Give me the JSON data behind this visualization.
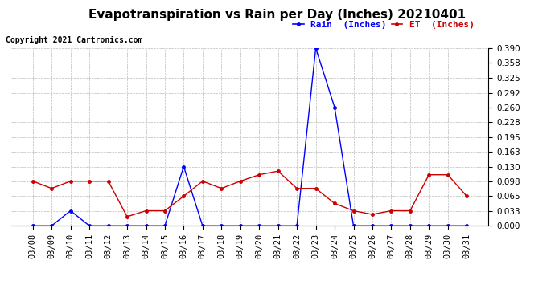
{
  "title": "Evapotranspiration vs Rain per Day (Inches) 20210401",
  "copyright": "Copyright 2021 Cartronics.com",
  "legend_rain": "Rain  (Inches)",
  "legend_et": "ET  (Inches)",
  "x_labels": [
    "03/08",
    "03/09",
    "03/10",
    "03/11",
    "03/12",
    "03/13",
    "03/14",
    "03/15",
    "03/16",
    "03/17",
    "03/18",
    "03/19",
    "03/20",
    "03/21",
    "03/22",
    "03/23",
    "03/24",
    "03/25",
    "03/26",
    "03/27",
    "03/28",
    "03/29",
    "03/30",
    "03/31"
  ],
  "rain_data": [
    0.0,
    0.0,
    0.033,
    0.0,
    0.0,
    0.0,
    0.0,
    0.0,
    0.13,
    0.0,
    0.0,
    0.0,
    0.0,
    0.0,
    0.0,
    0.39,
    0.26,
    0.0,
    0.0,
    0.0,
    0.0,
    0.0,
    0.0,
    0.0
  ],
  "et_data": [
    0.098,
    0.082,
    0.098,
    0.098,
    0.098,
    0.02,
    0.033,
    0.033,
    0.065,
    0.098,
    0.082,
    0.098,
    0.112,
    0.12,
    0.082,
    0.082,
    0.049,
    0.033,
    0.025,
    0.033,
    0.033,
    0.112,
    0.112,
    0.065
  ],
  "rain_color": "#0000ff",
  "et_color": "#cc0000",
  "ylim": [
    0.0,
    0.39
  ],
  "yticks": [
    0.0,
    0.033,
    0.065,
    0.098,
    0.13,
    0.163,
    0.195,
    0.228,
    0.26,
    0.292,
    0.325,
    0.358,
    0.39
  ],
  "bg_color": "#ffffff",
  "grid_color": "#bbbbbb",
  "title_fontsize": 11,
  "copyright_fontsize": 7,
  "legend_fontsize": 8,
  "tick_fontsize": 7.5
}
